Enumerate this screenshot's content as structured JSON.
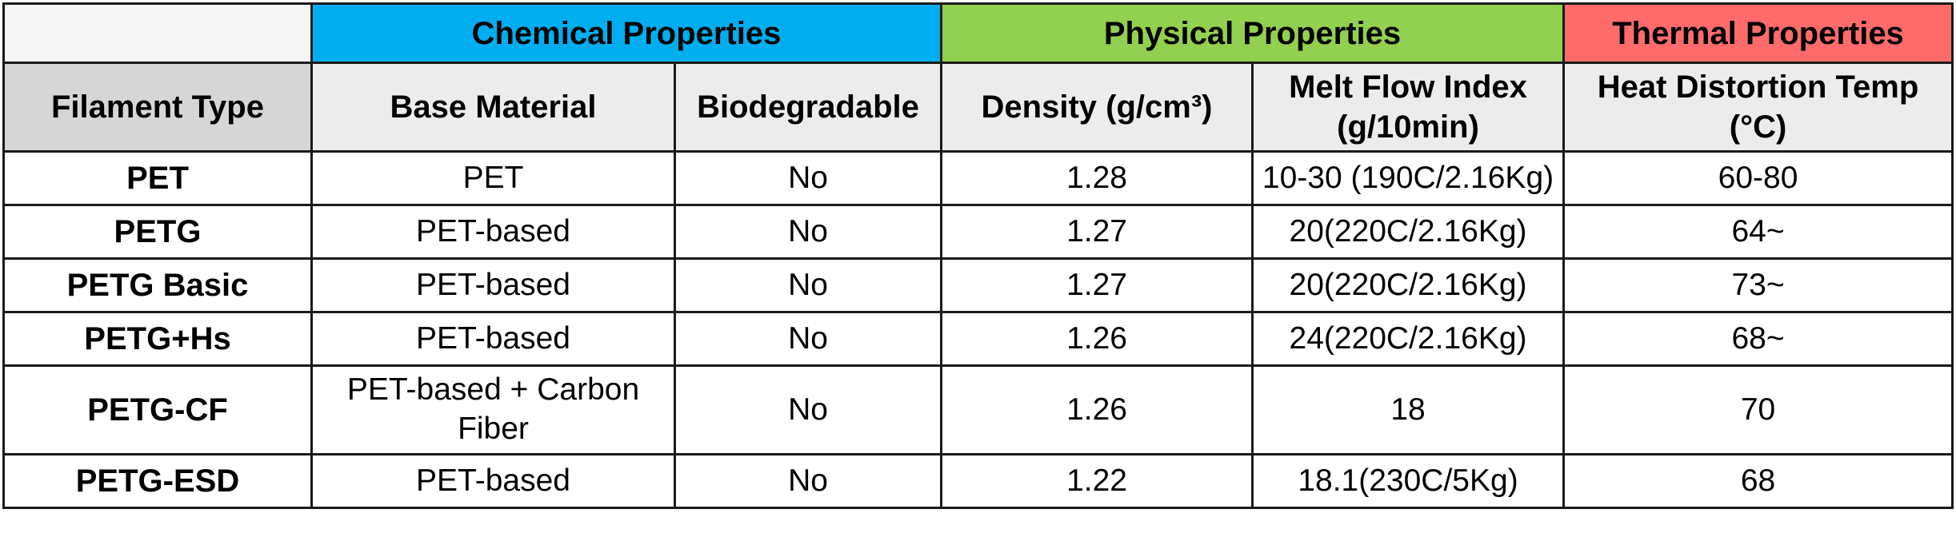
{
  "groups": {
    "corner": "",
    "chemical": "Chemical Properties",
    "physical": "Physical Properties",
    "thermal": "Thermal Properties"
  },
  "colors": {
    "chemical": "#00aeef",
    "physical": "#92d050",
    "thermal": "#ff6b6b"
  },
  "headers": {
    "filament_type": "Filament Type",
    "base_material": "Base Material",
    "biodegradable": "Biodegradable",
    "density": "Density (g/cm³)",
    "melt_flow_line1": "Melt Flow Index",
    "melt_flow_line2": "(g/10min)",
    "heat_distortion_line1": "Heat Distortion Temp",
    "heat_distortion_line2": "(°C)"
  },
  "rows": [
    {
      "type": "PET",
      "base": "PET",
      "base2": "",
      "bio": "No",
      "density": "1.28",
      "mfi": "10-30 (190C/2.16Kg)",
      "hdt": "60-80"
    },
    {
      "type": "PETG",
      "base": "PET-based",
      "base2": "",
      "bio": "No",
      "density": "1.27",
      "mfi": "20(220C/2.16Kg)",
      "hdt": "64~"
    },
    {
      "type": "PETG Basic",
      "base": "PET-based",
      "base2": "",
      "bio": "No",
      "density": "1.27",
      "mfi": "20(220C/2.16Kg)",
      "hdt": "73~"
    },
    {
      "type": "PETG+Hs",
      "base": "PET-based",
      "base2": "",
      "bio": "No",
      "density": "1.26",
      "mfi": "24(220C/2.16Kg)",
      "hdt": "68~"
    },
    {
      "type": "PETG-CF",
      "base": "PET-based + Carbon",
      "base2": "Fiber",
      "bio": "No",
      "density": "1.26",
      "mfi": "18",
      "hdt": "70"
    },
    {
      "type": "PETG-ESD",
      "base": "PET-based",
      "base2": "",
      "bio": "No",
      "density": "1.22",
      "mfi": "18.1(230C/5Kg)",
      "hdt": "68"
    }
  ]
}
